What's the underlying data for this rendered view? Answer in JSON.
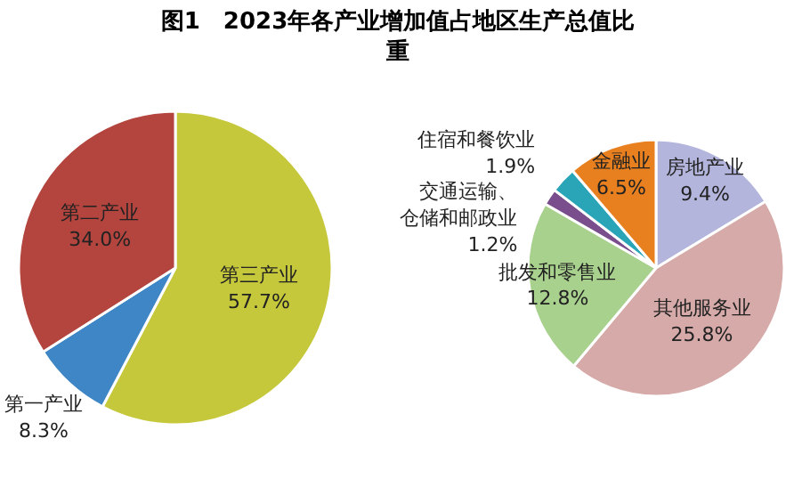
{
  "chart_data": [
    {
      "type": "pie",
      "title": "图1　2023年各产业增加值占地区生产总值比重",
      "data_labels": true,
      "categories": [
        "第三产业",
        "第一产业",
        "第二产业"
      ],
      "values": [
        57.7,
        8.3,
        34.0
      ],
      "value_labels": [
        "57.7%",
        "8.3%",
        "34.0%"
      ],
      "colors": [
        "#c6c83c",
        "#3f86c6",
        "#b3443e"
      ]
    },
    {
      "type": "pie",
      "data_labels": true,
      "categories": [
        "房地产业",
        "其他服务业",
        "批发和零售业",
        "交通运输、仓储和邮政业",
        "住宿和餐饮业",
        "金融业"
      ],
      "values": [
        9.4,
        25.8,
        12.8,
        1.2,
        1.9,
        6.5
      ],
      "value_labels": [
        "9.4%",
        "25.8%",
        "12.8%",
        "1.2%",
        "1.9%",
        "6.5%"
      ],
      "colors": [
        "#b3b5dc",
        "#d6aaa8",
        "#a9d18e",
        "#7a4d8c",
        "#2aa5b8",
        "#e8801f"
      ]
    }
  ]
}
